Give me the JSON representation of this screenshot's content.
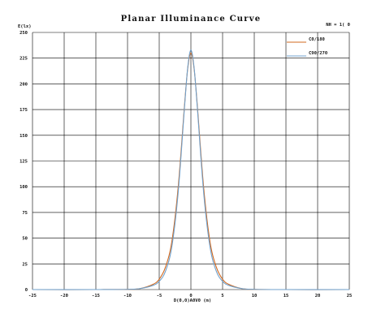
{
  "chart_data": {
    "type": "line",
    "title": "Planar Illuminance Curve",
    "corner_note": "NH = 1( 0",
    "ylabel": "E(lx)",
    "xlabel": "D(0,0)A0V0 (m)",
    "xlim": [
      -25,
      25
    ],
    "ylim": [
      0,
      250
    ],
    "x_ticks": [
      -25,
      -20,
      -15,
      -10,
      -5,
      0,
      5,
      10,
      15,
      20,
      25
    ],
    "x_tick_labels": [
      "-25",
      "-20",
      "-15",
      "-10",
      "-5",
      "0",
      "5",
      "10",
      "15",
      "20",
      "25"
    ],
    "y_ticks": [
      0,
      25,
      50,
      75,
      100,
      125,
      150,
      175,
      200,
      225,
      250
    ],
    "y_tick_labels": [
      "0",
      "25",
      "50",
      "75",
      "100",
      "125",
      "150",
      "175",
      "200",
      "225",
      "250"
    ],
    "grid": true,
    "legend_position": "top-right",
    "series": [
      {
        "name": "C0/180",
        "color": "#d2691e",
        "x": [
          -25,
          -15,
          -10,
          -8,
          -6,
          -5,
          -4,
          -3,
          -2,
          -1,
          -0.5,
          0,
          0.5,
          1,
          2,
          3,
          4,
          5,
          6,
          8,
          10,
          15,
          25
        ],
        "values": [
          0,
          0,
          0.2,
          1,
          5,
          10,
          22,
          47,
          100,
          180,
          215,
          230,
          215,
          180,
          100,
          47,
          22,
          10,
          5,
          1,
          0.2,
          0,
          0
        ]
      },
      {
        "name": "C90/270",
        "color": "#6fa0cc",
        "x": [
          -25,
          -15,
          -10,
          -8,
          -6,
          -5,
          -4,
          -3,
          -2,
          -1,
          -0.5,
          0,
          0.5,
          1,
          2,
          3,
          4,
          5,
          6,
          8,
          10,
          15,
          25
        ],
        "values": [
          0,
          0,
          0.2,
          1,
          4,
          8,
          18,
          42,
          95,
          178,
          216,
          233,
          216,
          178,
          95,
          42,
          18,
          8,
          4,
          1,
          0.2,
          0,
          0
        ]
      }
    ]
  }
}
